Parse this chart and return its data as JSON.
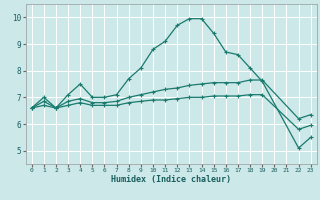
{
  "xlabel": "Humidex (Indice chaleur)",
  "ylabel": "",
  "bg_color": "#cce8e8",
  "grid_color": "#ffffff",
  "line_color": "#1a7a6e",
  "xlim": [
    -0.5,
    23.5
  ],
  "ylim": [
    4.5,
    10.5
  ],
  "xticks": [
    0,
    1,
    2,
    3,
    4,
    5,
    6,
    7,
    8,
    9,
    10,
    11,
    12,
    13,
    14,
    15,
    16,
    17,
    18,
    19,
    20,
    21,
    22,
    23
  ],
  "yticks": [
    5,
    6,
    7,
    8,
    9,
    10
  ],
  "line1_x": [
    0,
    1,
    2,
    3,
    4,
    5,
    6,
    7,
    8,
    9,
    10,
    11,
    12,
    13,
    14,
    15,
    16,
    17,
    18,
    19,
    22,
    23
  ],
  "line1_y": [
    6.6,
    7.0,
    6.6,
    7.1,
    7.5,
    7.0,
    7.0,
    7.1,
    7.7,
    8.1,
    8.8,
    9.1,
    9.7,
    9.95,
    9.95,
    9.4,
    8.7,
    8.6,
    8.1,
    7.6,
    5.1,
    5.5
  ],
  "line2_x": [
    0,
    1,
    2,
    3,
    4,
    5,
    6,
    7,
    8,
    9,
    10,
    11,
    12,
    13,
    14,
    15,
    16,
    17,
    18,
    19,
    22,
    23
  ],
  "line2_y": [
    6.6,
    6.85,
    6.6,
    6.85,
    6.95,
    6.8,
    6.8,
    6.85,
    7.0,
    7.1,
    7.2,
    7.3,
    7.35,
    7.45,
    7.5,
    7.55,
    7.55,
    7.55,
    7.65,
    7.65,
    6.2,
    6.35
  ],
  "line3_x": [
    0,
    1,
    2,
    3,
    4,
    5,
    6,
    7,
    8,
    9,
    10,
    11,
    12,
    13,
    14,
    15,
    16,
    17,
    18,
    19,
    22,
    23
  ],
  "line3_y": [
    6.6,
    6.7,
    6.6,
    6.7,
    6.8,
    6.7,
    6.7,
    6.7,
    6.8,
    6.85,
    6.9,
    6.9,
    6.95,
    7.0,
    7.0,
    7.05,
    7.05,
    7.05,
    7.1,
    7.1,
    5.8,
    5.95
  ]
}
